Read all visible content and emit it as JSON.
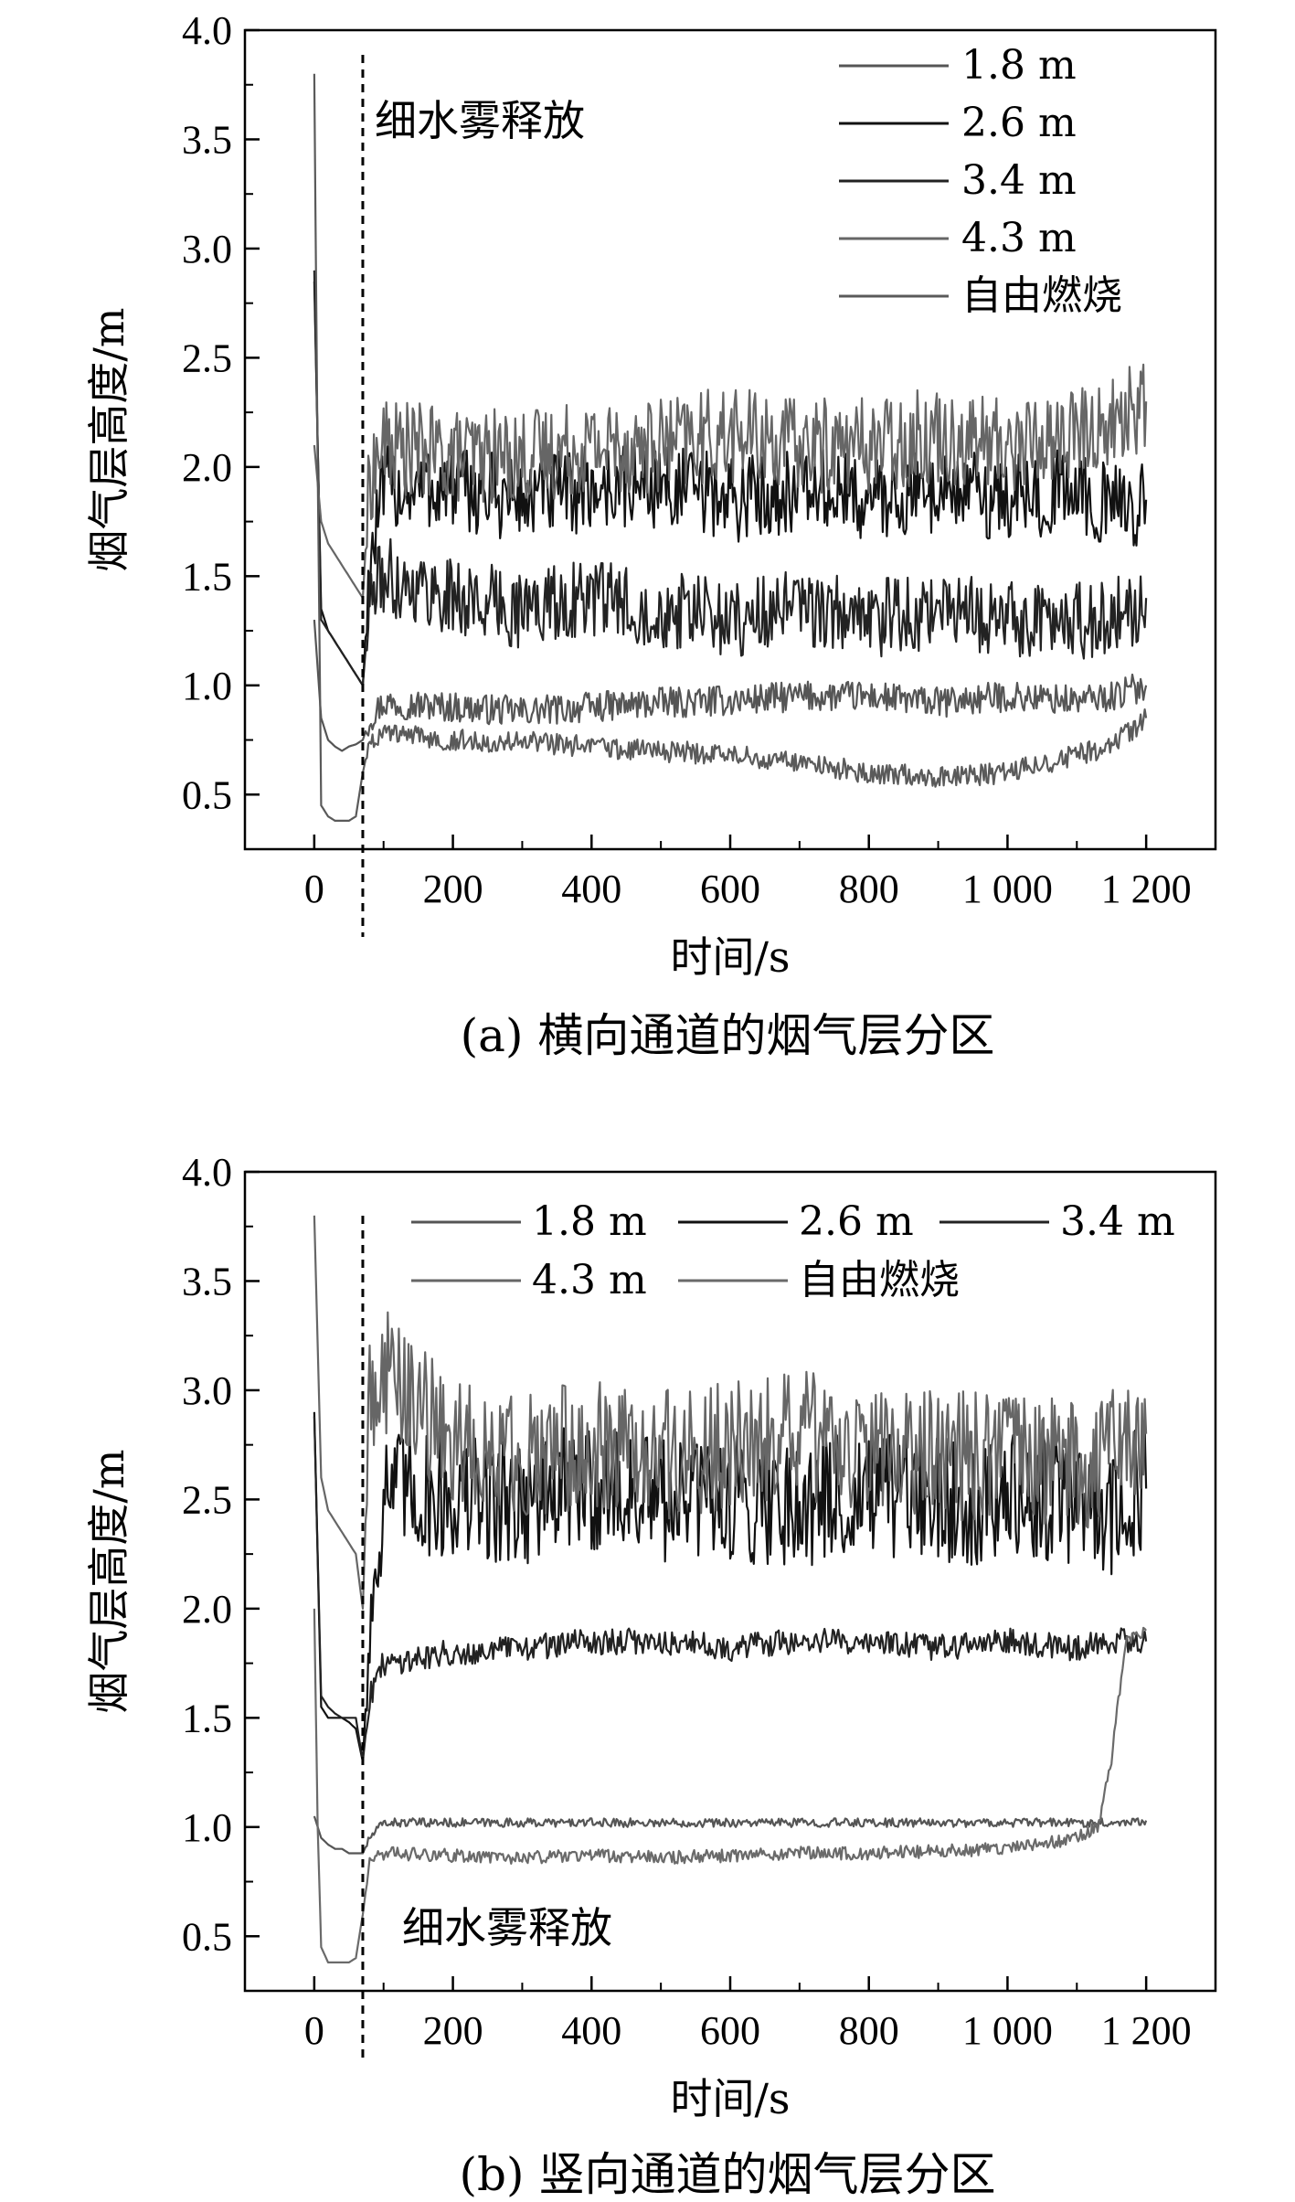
{
  "chart_data": [
    {
      "panel": "a",
      "type": "line",
      "caption": "(a) 横向通道的烟气层分区",
      "xlabel": "时间/s",
      "ylabel": "烟气层高度/m",
      "xlim": [
        -100,
        1300
      ],
      "ylim": [
        0.25,
        4.0
      ],
      "x_ticks": [
        0,
        200,
        400,
        600,
        800,
        1000,
        1200
      ],
      "x_tick_labels": [
        "0",
        "200",
        "400",
        "600",
        "800",
        "1 000",
        "1 200"
      ],
      "y_ticks": [
        0.5,
        1.0,
        1.5,
        2.0,
        2.5,
        3.0,
        3.5,
        4.0
      ],
      "y_tick_labels": [
        "0.5",
        "1.0",
        "1.5",
        "2.0",
        "2.5",
        "3.0",
        "3.5",
        "4.0"
      ],
      "annotation": {
        "text": "细水雾释放",
        "x": 70
      },
      "legend_position": "top-right",
      "series": [
        {
          "name": "1.8 m",
          "color": "#555555",
          "x": [
            0,
            10,
            20,
            30,
            40,
            50,
            60,
            70,
            80,
            100,
            200,
            300,
            400,
            500,
            600,
            700,
            800,
            900,
            1000,
            1100,
            1150,
            1200
          ],
          "y": [
            1.3,
            0.85,
            0.75,
            0.72,
            0.7,
            0.72,
            0.73,
            0.75,
            0.85,
            0.92,
            0.9,
            0.88,
            0.9,
            0.92,
            0.93,
            0.95,
            0.95,
            0.92,
            0.95,
            0.93,
            0.95,
            1.0
          ]
        },
        {
          "name": "2.6 m",
          "color": "#111111",
          "x": [
            0,
            10,
            20,
            30,
            40,
            50,
            60,
            70,
            80,
            100,
            200,
            300,
            400,
            500,
            600,
            700,
            800,
            900,
            1000,
            1100,
            1150,
            1200
          ],
          "y": [
            2.85,
            1.35,
            1.25,
            1.2,
            1.15,
            1.1,
            1.05,
            1.0,
            1.55,
            1.9,
            1.9,
            1.85,
            1.9,
            1.92,
            1.85,
            1.9,
            1.85,
            1.9,
            1.85,
            1.9,
            1.8,
            1.85
          ]
        },
        {
          "name": "3.4 m",
          "color": "#222222",
          "x": [
            0,
            10,
            20,
            30,
            40,
            50,
            60,
            70,
            80,
            100,
            200,
            300,
            400,
            500,
            600,
            700,
            800,
            900,
            1000,
            1100,
            1150,
            1200
          ],
          "y": [
            2.9,
            1.3,
            1.25,
            1.2,
            1.15,
            1.1,
            1.05,
            1.0,
            1.4,
            1.5,
            1.4,
            1.35,
            1.4,
            1.35,
            1.3,
            1.35,
            1.3,
            1.35,
            1.3,
            1.3,
            1.3,
            1.4
          ]
        },
        {
          "name": "4.3 m",
          "color": "#666666",
          "x": [
            0,
            10,
            20,
            30,
            40,
            50,
            60,
            70,
            80,
            100,
            200,
            300,
            400,
            500,
            600,
            700,
            800,
            900,
            1000,
            1100,
            1150,
            1200
          ],
          "y": [
            2.1,
            1.75,
            1.65,
            1.6,
            1.55,
            1.5,
            1.45,
            1.4,
            1.95,
            2.1,
            2.05,
            2.05,
            2.1,
            2.1,
            2.15,
            2.1,
            2.1,
            2.15,
            2.1,
            2.15,
            2.2,
            2.3
          ]
        },
        {
          "name": "自由燃烧",
          "color": "#5a5a5a",
          "x": [
            0,
            5,
            10,
            20,
            30,
            40,
            50,
            60,
            70,
            80,
            100,
            200,
            300,
            400,
            500,
            600,
            700,
            800,
            900,
            1000,
            1100,
            1150,
            1200
          ],
          "y": [
            3.8,
            2.0,
            0.45,
            0.4,
            0.38,
            0.38,
            0.38,
            0.4,
            0.6,
            0.75,
            0.78,
            0.75,
            0.74,
            0.72,
            0.7,
            0.68,
            0.65,
            0.6,
            0.58,
            0.6,
            0.68,
            0.72,
            0.85
          ]
        }
      ]
    },
    {
      "panel": "b",
      "type": "line",
      "caption": "(b) 竖向通道的烟气层分区",
      "xlabel": "时间/s",
      "ylabel": "烟气层高度/m",
      "xlim": [
        -100,
        1300
      ],
      "ylim": [
        0.25,
        4.0
      ],
      "x_ticks": [
        0,
        200,
        400,
        600,
        800,
        1000,
        1200
      ],
      "x_tick_labels": [
        "0",
        "200",
        "400",
        "600",
        "800",
        "1 000",
        "1 200"
      ],
      "y_ticks": [
        0.5,
        1.0,
        1.5,
        2.0,
        2.5,
        3.0,
        3.5,
        4.0
      ],
      "y_tick_labels": [
        "0.5",
        "1.0",
        "1.5",
        "2.0",
        "2.5",
        "3.0",
        "3.5",
        "4.0"
      ],
      "annotation": {
        "text": "细水雾释放",
        "x": 70
      },
      "legend_position": "top",
      "series": [
        {
          "name": "1.8 m",
          "color": "#555555",
          "x": [
            0,
            10,
            20,
            30,
            40,
            50,
            60,
            70,
            80,
            100,
            200,
            300,
            400,
            500,
            600,
            700,
            800,
            900,
            1000,
            1100,
            1150,
            1200
          ],
          "y": [
            1.05,
            0.95,
            0.92,
            0.9,
            0.9,
            0.88,
            0.88,
            0.88,
            0.95,
            1.02,
            1.02,
            1.02,
            1.02,
            1.02,
            1.02,
            1.02,
            1.02,
            1.02,
            1.02,
            1.02,
            1.02,
            1.03
          ]
        },
        {
          "name": "2.6 m",
          "color": "#111111",
          "x": [
            0,
            10,
            20,
            30,
            40,
            50,
            60,
            70,
            80,
            100,
            200,
            300,
            400,
            500,
            600,
            700,
            800,
            900,
            1000,
            1100,
            1150,
            1200
          ],
          "y": [
            2.9,
            1.55,
            1.5,
            1.5,
            1.5,
            1.48,
            1.45,
            1.3,
            1.9,
            2.55,
            2.5,
            2.5,
            2.55,
            2.5,
            2.5,
            2.5,
            2.5,
            2.5,
            2.5,
            2.5,
            2.45,
            2.55
          ]
        },
        {
          "name": "3.4 m",
          "color": "#222222",
          "x": [
            0,
            10,
            20,
            30,
            40,
            50,
            60,
            70,
            80,
            100,
            200,
            300,
            400,
            500,
            600,
            700,
            800,
            900,
            1000,
            1100,
            1150,
            1200
          ],
          "y": [
            2.88,
            1.6,
            1.55,
            1.52,
            1.5,
            1.5,
            1.5,
            1.3,
            1.6,
            1.75,
            1.8,
            1.82,
            1.85,
            1.85,
            1.82,
            1.85,
            1.85,
            1.82,
            1.85,
            1.82,
            1.85,
            1.85
          ]
        },
        {
          "name": "4.3 m",
          "color": "#666666",
          "x": [
            0,
            10,
            20,
            30,
            40,
            50,
            60,
            70,
            80,
            100,
            200,
            300,
            400,
            500,
            600,
            700,
            800,
            900,
            1000,
            1100,
            1150,
            1200
          ],
          "y": [
            3.8,
            2.6,
            2.45,
            2.4,
            2.35,
            2.3,
            2.25,
            2.0,
            3.0,
            3.1,
            2.75,
            2.7,
            2.75,
            2.7,
            2.75,
            2.8,
            2.7,
            2.7,
            2.7,
            2.65,
            2.7,
            2.8
          ]
        },
        {
          "name": "自由燃烧",
          "color": "#6a6a6a",
          "x": [
            0,
            5,
            10,
            20,
            30,
            40,
            50,
            60,
            70,
            80,
            100,
            200,
            300,
            400,
            500,
            600,
            700,
            800,
            900,
            1000,
            1100,
            1130,
            1150,
            1170,
            1200
          ],
          "y": [
            2.0,
            1.0,
            0.45,
            0.38,
            0.38,
            0.38,
            0.38,
            0.4,
            0.6,
            0.85,
            0.88,
            0.87,
            0.86,
            0.87,
            0.86,
            0.87,
            0.88,
            0.88,
            0.89,
            0.9,
            0.95,
            1.0,
            1.3,
            1.85,
            1.9
          ]
        }
      ]
    }
  ]
}
